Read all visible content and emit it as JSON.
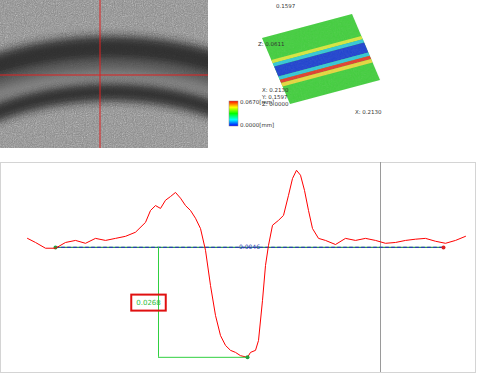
{
  "chart_data": {
    "type": "line",
    "color": "#ff0000",
    "x": [
      27,
      35,
      45,
      55,
      65,
      75,
      85,
      95,
      105,
      115,
      125,
      135,
      145,
      150,
      155,
      160,
      165,
      170,
      175,
      180,
      185,
      190,
      195,
      200,
      205,
      210,
      215,
      220,
      225,
      230,
      235,
      240,
      247,
      250,
      255,
      258,
      262,
      265,
      268,
      272,
      278,
      283,
      288,
      292,
      296,
      300,
      304,
      308,
      312,
      318,
      325,
      335,
      345,
      355,
      365,
      375,
      385,
      395,
      405,
      415,
      425,
      435,
      445,
      455,
      465
    ],
    "values": [
      0.0022,
      0.0012,
      -0.0002,
      -0.0002,
      0.0012,
      0.0017,
      0.001,
      0.0022,
      0.0017,
      0.0022,
      0.0027,
      0.0037,
      0.0061,
      0.009,
      0.0102,
      0.0095,
      0.0115,
      0.0124,
      0.0134,
      0.012,
      0.0102,
      0.009,
      0.0071,
      0.0046,
      -0.0007,
      -0.0093,
      -0.0166,
      -0.0215,
      -0.0239,
      -0.0251,
      -0.0256,
      -0.0264,
      -0.0268,
      -0.0256,
      -0.0251,
      -0.0227,
      -0.0129,
      -0.0044,
      0.0005,
      0.0054,
      0.0066,
      0.0078,
      0.0127,
      0.0168,
      0.0188,
      0.0176,
      0.0139,
      0.009,
      0.0046,
      0.0022,
      0.0017,
      0.0007,
      0.0022,
      0.0017,
      0.0022,
      0.0017,
      0.001,
      0.0012,
      0.0017,
      0.002,
      0.0022,
      0.0015,
      0.001,
      0.0017,
      0.0027
    ],
    "xlim": [
      0,
      475
    ],
    "ylim": [
      -0.0305,
      0.0207
    ],
    "xticks": [],
    "yticks": [],
    "tick_labels": false,
    "grid": false,
    "reference_line": {
      "x": [
        55,
        443
      ],
      "y": 0,
      "label": "0.0046"
    },
    "cursor_x": 380,
    "measurement": {
      "x": 158,
      "x_end": 247,
      "y": 0,
      "y_end": -0.0268,
      "label": "0.0268"
    }
  },
  "surface_view": {
    "labels": [
      "0.1597",
      "Z: 0.0611",
      "X: 0.2130",
      "Y: 0.1597",
      "Z: 0.0000",
      "X: 0.2130"
    ]
  },
  "color_bar": {
    "range": [
      0,
      0.067
    ],
    "labels": [
      "0.0670[mm]",
      "0.0000[mm]"
    ]
  }
}
